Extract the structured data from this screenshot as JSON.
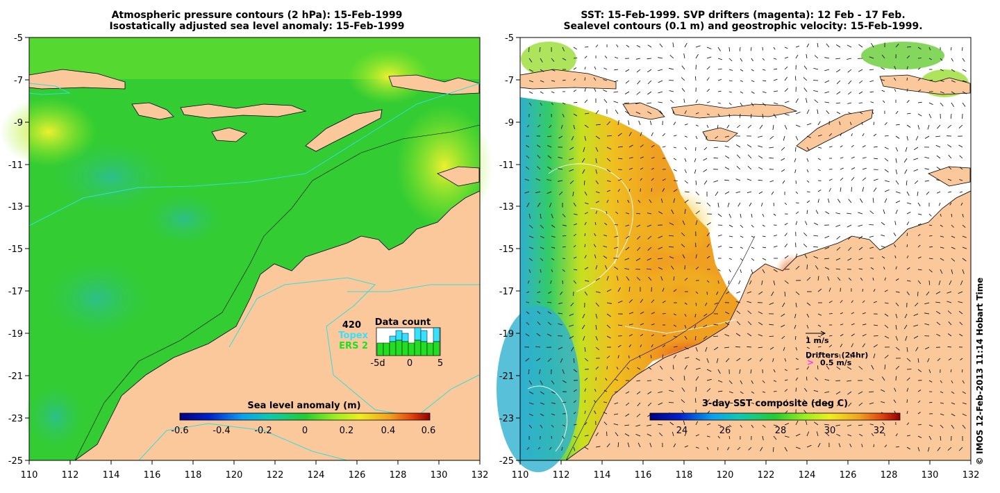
{
  "left_panel": {
    "title_line1": "Atmospheric pressure contours (2 hPa): 15-Feb-1999",
    "title_line2": "Isostatically adjusted sea level anomaly: 15-Feb-1999",
    "y_ticks": [
      "-5",
      "-7",
      "-9",
      "-11",
      "-13",
      "-15",
      "-17",
      "-19",
      "-21",
      "-23",
      "-25"
    ],
    "x_ticks": [
      "110",
      "112",
      "114",
      "116",
      "118",
      "120",
      "122",
      "124",
      "126",
      "128",
      "130",
      "132"
    ],
    "data_count": {
      "label": "Data count",
      "max_count": "420",
      "topex_label": "Topex",
      "ers_label": "ERS 2",
      "x_ticks": [
        "-5d",
        "0",
        "5"
      ],
      "topex_color": "#38e0ff",
      "ers_color": "#22dd22"
    },
    "colorbar": {
      "title": "Sea level anomaly (m)",
      "ticks": [
        "-0.6",
        "-0.4",
        "-0.2",
        "0",
        "0.2",
        "0.4",
        "0.6"
      ]
    }
  },
  "right_panel": {
    "title_line1": "SST: 15-Feb-1999. SVP drifters (magenta): 12 Feb - 17 Feb.",
    "title_line2": "Sealevel contours (0.1 m) and geostrophic velocity: 15-Feb-1999.",
    "y_ticks": [
      "-5",
      "-7",
      "-9",
      "-11",
      "-13",
      "-15",
      "-17",
      "-19",
      "-21",
      "-23",
      "-25"
    ],
    "x_ticks": [
      "110",
      "112",
      "114",
      "116",
      "118",
      "120",
      "122",
      "124",
      "126",
      "128",
      "130",
      "132"
    ],
    "legend": {
      "velocity_label": "1 m/s",
      "drifters_label": "Drifters (24hr)",
      "drifter_speed": "0.5 m/s",
      "drifter_symbol": ">",
      "drifter_color": "#ff33ff"
    },
    "colorbar": {
      "title": "3-day SST composite (deg C)",
      "ticks": [
        "24",
        "26",
        "28",
        "30",
        "32"
      ]
    }
  },
  "copyright": "© IMOS 12-Feb-2013 11:14 Hobart Time",
  "colors": {
    "land": "#fac89a",
    "ocean_green": "#33cc33",
    "contour_cyan": "#33dddd"
  }
}
